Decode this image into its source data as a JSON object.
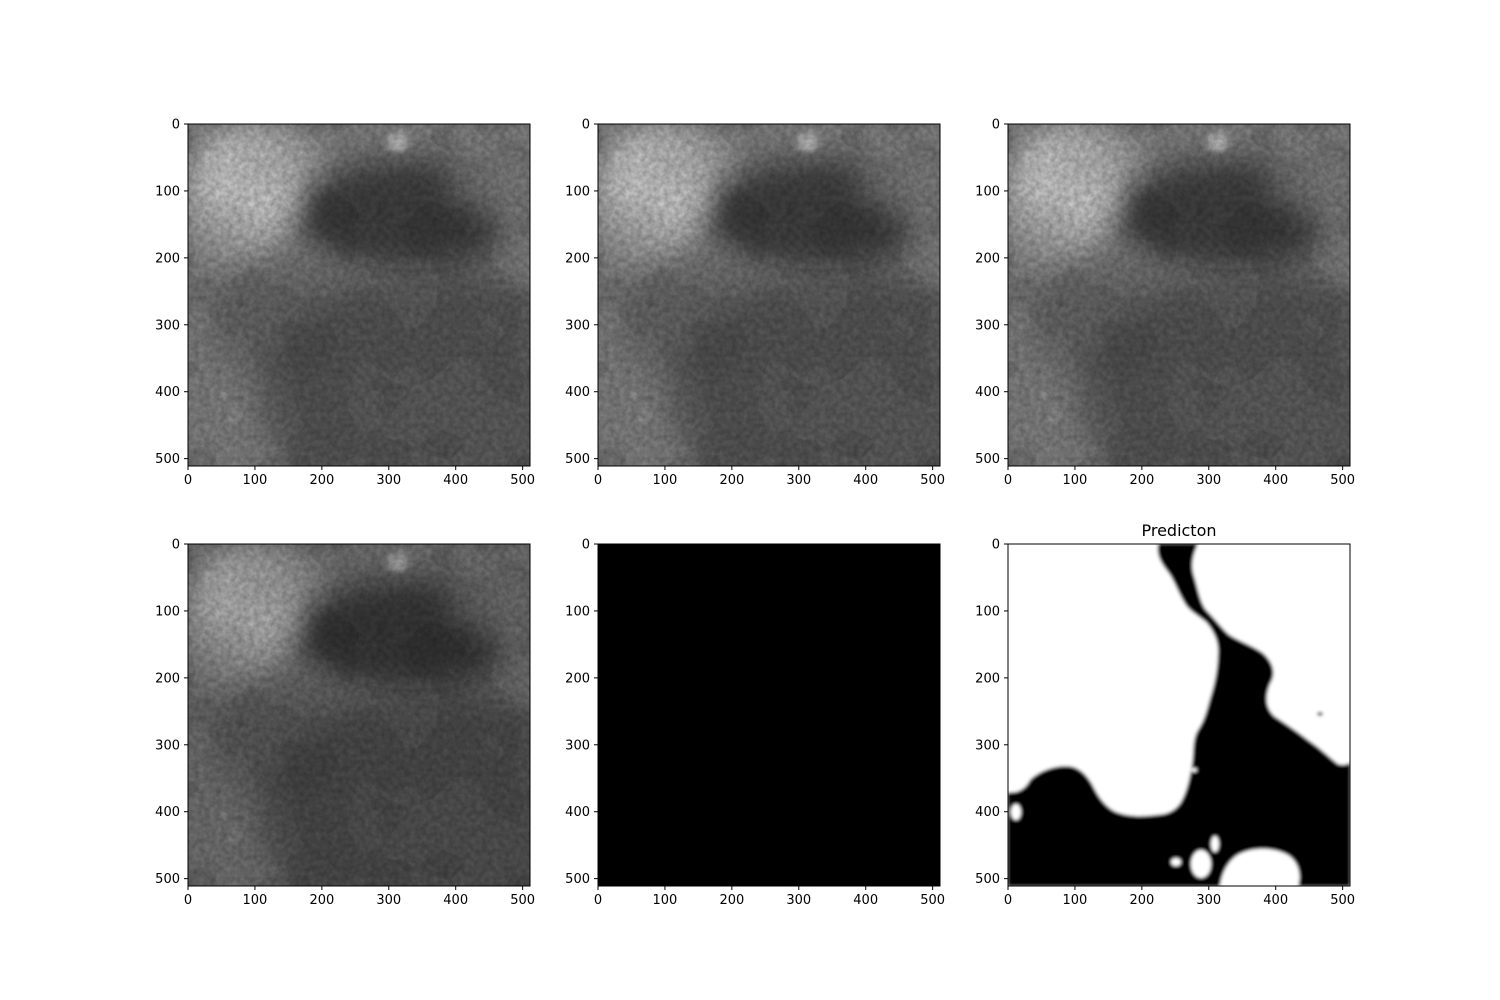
{
  "figure": {
    "background": "#ffffff",
    "axis_color": "#000000"
  },
  "chart_data": [
    {
      "type": "heatmap",
      "panel": "top-left",
      "colormap": "gray",
      "title": "",
      "image_description": "grayscale satellite scene with bright cloud mass in upper-left and scattered bright patches in upper-right",
      "xlim": [
        0,
        511
      ],
      "ylim": [
        511,
        0
      ],
      "xticks": [
        0,
        100,
        200,
        300,
        400,
        500
      ],
      "yticks": [
        0,
        100,
        200,
        300,
        400,
        500
      ],
      "xtick_labels": [
        "0",
        "100",
        "200",
        "300",
        "400",
        "500"
      ],
      "ytick_labels": [
        "0",
        "100",
        "200",
        "300",
        "400",
        "500"
      ]
    },
    {
      "type": "heatmap",
      "panel": "top-middle",
      "colormap": "gray",
      "title": "",
      "image_description": "grayscale satellite scene, similar to previous band",
      "xlim": [
        0,
        511
      ],
      "ylim": [
        511,
        0
      ],
      "xticks": [
        0,
        100,
        200,
        300,
        400,
        500
      ],
      "yticks": [
        0,
        100,
        200,
        300,
        400,
        500
      ],
      "xtick_labels": [
        "0",
        "100",
        "200",
        "300",
        "400",
        "500"
      ],
      "ytick_labels": [
        "0",
        "100",
        "200",
        "300",
        "400",
        "500"
      ]
    },
    {
      "type": "heatmap",
      "panel": "top-right",
      "colormap": "gray",
      "title": "",
      "image_description": "grayscale satellite scene, similar to previous band",
      "xlim": [
        0,
        511
      ],
      "ylim": [
        511,
        0
      ],
      "xticks": [
        0,
        100,
        200,
        300,
        400,
        500
      ],
      "yticks": [
        0,
        100,
        200,
        300,
        400,
        500
      ],
      "xtick_labels": [
        "0",
        "100",
        "200",
        "300",
        "400",
        "500"
      ],
      "ytick_labels": [
        "0",
        "100",
        "200",
        "300",
        "400",
        "500"
      ]
    },
    {
      "type": "heatmap",
      "panel": "bottom-left",
      "colormap": "gray",
      "title": "",
      "image_description": "grayscale satellite scene, slightly higher contrast band",
      "xlim": [
        0,
        511
      ],
      "ylim": [
        511,
        0
      ],
      "xticks": [
        0,
        100,
        200,
        300,
        400,
        500
      ],
      "yticks": [
        0,
        100,
        200,
        300,
        400,
        500
      ],
      "xtick_labels": [
        "0",
        "100",
        "200",
        "300",
        "400",
        "500"
      ],
      "ytick_labels": [
        "0",
        "100",
        "200",
        "300",
        "400",
        "500"
      ]
    },
    {
      "type": "heatmap",
      "panel": "bottom-middle",
      "colormap": "gray",
      "title": "",
      "image_description": "uniformly black image (all zeros)",
      "xlim": [
        0,
        511
      ],
      "ylim": [
        511,
        0
      ],
      "xticks": [
        0,
        100,
        200,
        300,
        400,
        500
      ],
      "yticks": [
        0,
        100,
        200,
        300,
        400,
        500
      ],
      "xtick_labels": [
        "0",
        "100",
        "200",
        "300",
        "400",
        "500"
      ],
      "ytick_labels": [
        "0",
        "100",
        "200",
        "300",
        "400",
        "500"
      ]
    },
    {
      "type": "heatmap",
      "panel": "bottom-right",
      "colormap": "gray",
      "title": "Predicton",
      "image_description": "binary mask: white (1) in upper-left and right regions, black (0) channel running from top-center down to bottom, with small white blobs near bottom center",
      "xlim": [
        0,
        511
      ],
      "ylim": [
        511,
        0
      ],
      "xticks": [
        0,
        100,
        200,
        300,
        400,
        500
      ],
      "yticks": [
        0,
        100,
        200,
        300,
        400,
        500
      ],
      "xtick_labels": [
        "0",
        "100",
        "200",
        "300",
        "400",
        "500"
      ],
      "ytick_labels": [
        "0",
        "100",
        "200",
        "300",
        "400",
        "500"
      ]
    }
  ]
}
